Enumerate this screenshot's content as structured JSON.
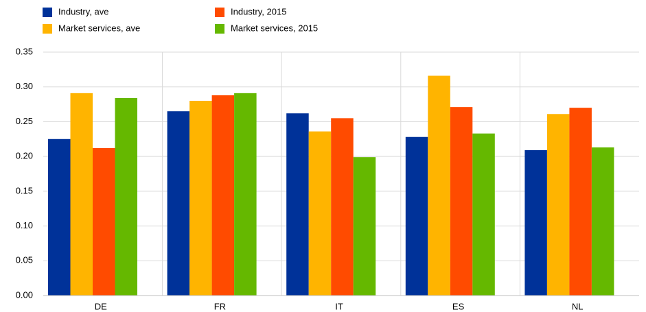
{
  "chart_data": {
    "type": "bar",
    "categories": [
      "DE",
      "FR",
      "IT",
      "ES",
      "NL"
    ],
    "series": [
      {
        "name": "Industry, ave",
        "color": "#003299",
        "values": [
          0.225,
          0.265,
          0.262,
          0.228,
          0.209
        ]
      },
      {
        "name": "Market services, ave",
        "color": "#ffb400",
        "values": [
          0.291,
          0.28,
          0.236,
          0.316,
          0.261
        ]
      },
      {
        "name": "Industry, 2015",
        "color": "#ff4b00",
        "values": [
          0.212,
          0.288,
          0.255,
          0.271,
          0.27
        ]
      },
      {
        "name": "Market services, 2015",
        "color": "#65b800",
        "values": [
          0.284,
          0.291,
          0.199,
          0.233,
          0.213
        ]
      }
    ],
    "ylim": [
      0,
      0.35
    ],
    "yticks": [
      {
        "value": 0,
        "label": "0.00"
      },
      {
        "value": 0.05,
        "label": "0.05"
      },
      {
        "value": 0.1,
        "label": "0.10"
      },
      {
        "value": 0.15,
        "label": "0.15"
      },
      {
        "value": 0.2,
        "label": "0.20"
      },
      {
        "value": 0.25,
        "label": "0.25"
      },
      {
        "value": 0.3,
        "label": "0.30"
      },
      {
        "value": 0.35,
        "label": "0.35"
      }
    ],
    "grid": true,
    "legend": "top"
  }
}
